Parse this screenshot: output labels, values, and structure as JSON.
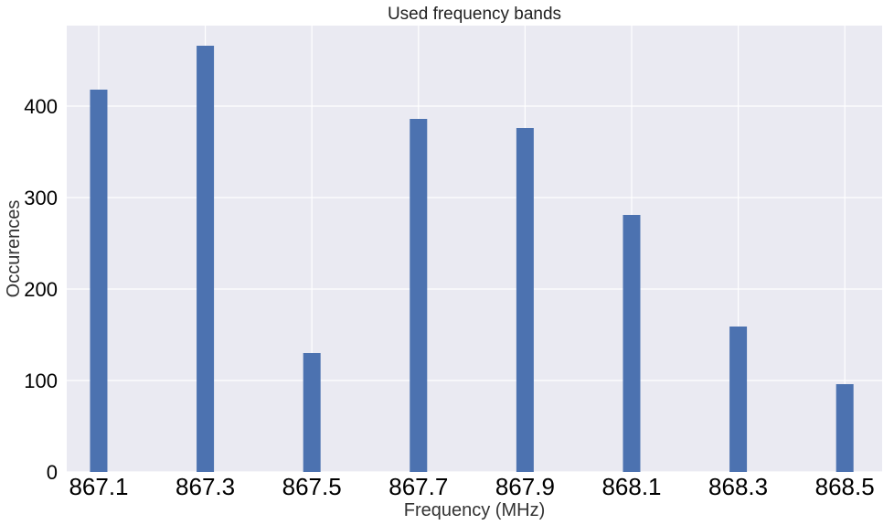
{
  "chart_data": {
    "type": "bar",
    "title": "Used frequency bands",
    "xlabel": "Frequency (MHz)",
    "ylabel": "Occurences",
    "x_ticks": [
      "867.1",
      "867.3",
      "867.5",
      "867.7",
      "867.9",
      "868.1",
      "868.3",
      "868.5"
    ],
    "y_ticks": [
      0,
      100,
      200,
      300,
      400
    ],
    "ylim": [
      0,
      488
    ],
    "xlim": [
      867.04,
      868.57
    ],
    "grid": true,
    "legend": false,
    "colors": {
      "bar": "#4c72b0",
      "background": "#eaeaf2",
      "grid": "#ffffff"
    },
    "bars": [
      {
        "x": 867.1,
        "value": 418
      },
      {
        "x": 867.3,
        "value": 466
      },
      {
        "x": 867.5,
        "value": 130
      },
      {
        "x": 867.7,
        "value": 386
      },
      {
        "x": 867.9,
        "value": 376
      },
      {
        "x": 868.1,
        "value": 281
      },
      {
        "x": 868.3,
        "value": 159
      },
      {
        "x": 868.5,
        "value": 96
      }
    ]
  }
}
